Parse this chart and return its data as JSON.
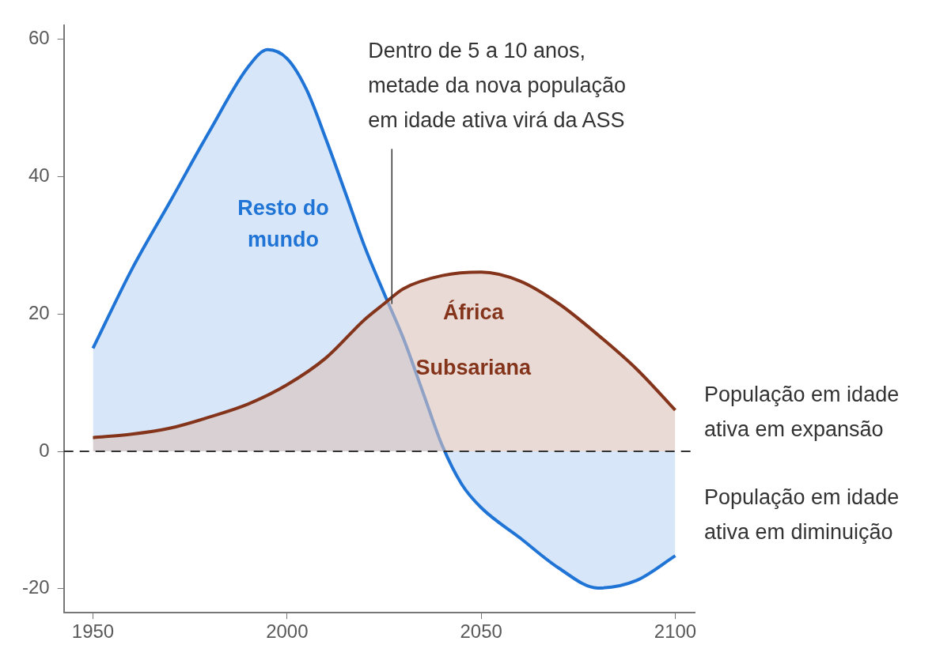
{
  "chart_data": {
    "type": "area",
    "xlim": [
      1942.5,
      2105
    ],
    "ylim": [
      -23.5,
      62
    ],
    "xticks": [
      1950,
      2000,
      2050,
      2100
    ],
    "yticks": [
      -20,
      0,
      20,
      40,
      60
    ],
    "grid": false,
    "legend": false,
    "marker": "none",
    "series": [
      {
        "name": "Resto do mundo",
        "color": "#1f74d6",
        "x": [
          1950,
          1960,
          1970,
          1980,
          1990,
          1995,
          2000,
          2005,
          2010,
          2015,
          2020,
          2025,
          2030,
          2035,
          2040,
          2045,
          2050,
          2060,
          2070,
          2080,
          2090,
          2100
        ],
        "values": [
          15,
          26.5,
          36.5,
          46.6,
          56,
          58.5,
          57.2,
          52.7,
          45.5,
          37.7,
          29.8,
          23,
          16.4,
          8.6,
          0.8,
          -4.8,
          -8.2,
          -12.6,
          -17,
          -19.9,
          -18.8,
          -15.2
        ]
      },
      {
        "name": "África Subsariana",
        "color": "#84341a",
        "x": [
          1950,
          1960,
          1970,
          1980,
          1990,
          2000,
          2010,
          2020,
          2025,
          2030,
          2040,
          2050,
          2060,
          2070,
          2080,
          2090,
          2100
        ],
        "values": [
          2,
          2.5,
          3.4,
          5,
          6.9,
          9.7,
          13.6,
          19.2,
          21.5,
          23.7,
          25.6,
          26.1,
          24.8,
          21.5,
          17,
          12,
          6
        ]
      }
    ],
    "ref_lines": [
      {
        "axis": "y",
        "value": 0,
        "color": "#333333",
        "line_style": "dashed"
      }
    ],
    "annotations": [
      {
        "text": "Dentro de 5 a 10 anos, metade da nova população em idade ativa virá da ASS",
        "x": 2027,
        "y": 21
      },
      "População em idade ativa em expansão",
      "População em idade ativa em diminuição"
    ]
  }
}
